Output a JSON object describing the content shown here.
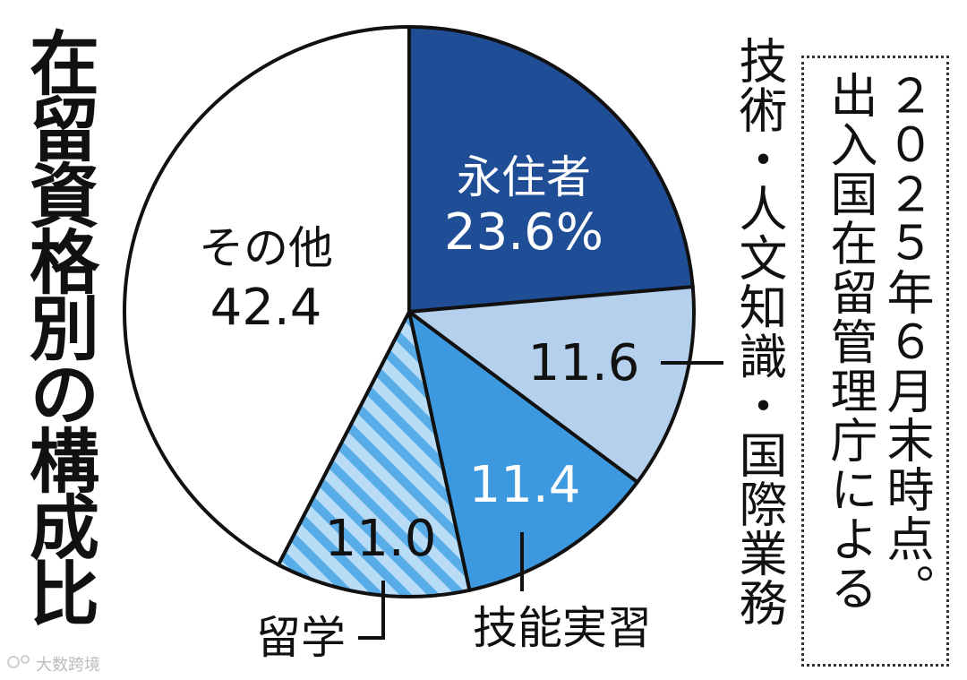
{
  "title": "在留資格別の構成比",
  "note": "２０２５年６月末時点。出入国在留管理庁による",
  "credit": "大数跨境",
  "chart_data": {
    "type": "pie",
    "start_angle_deg": 0,
    "direction": "clockwise",
    "slices": [
      {
        "label": "永住者",
        "value": 23.6,
        "display": "23.6%",
        "color": "#1f4e96",
        "pattern": "solid",
        "label_position": "inside",
        "text_color": "#ffffff"
      },
      {
        "label": "技術・人文知識・国際業務",
        "value": 11.6,
        "display": "11.6",
        "color": "#b5d0ec",
        "pattern": "solid",
        "label_position": "outside-right",
        "text_color": "#111111"
      },
      {
        "label": "技能実習",
        "value": 11.4,
        "display": "11.4",
        "color": "#3c99e0",
        "pattern": "solid",
        "label_position": "outside-below",
        "text_color": "#ffffff"
      },
      {
        "label": "留学",
        "value": 11.0,
        "display": "11.0",
        "color": "#58ace8",
        "pattern": "diagonal-stripes",
        "label_position": "outside-below-left",
        "text_color": "#111111"
      },
      {
        "label": "その他",
        "value": 42.4,
        "display": "42.4",
        "color": "#ffffff",
        "pattern": "solid",
        "label_position": "inside",
        "text_color": "#111111"
      }
    ],
    "stripe_color": "#b9dcf6"
  }
}
